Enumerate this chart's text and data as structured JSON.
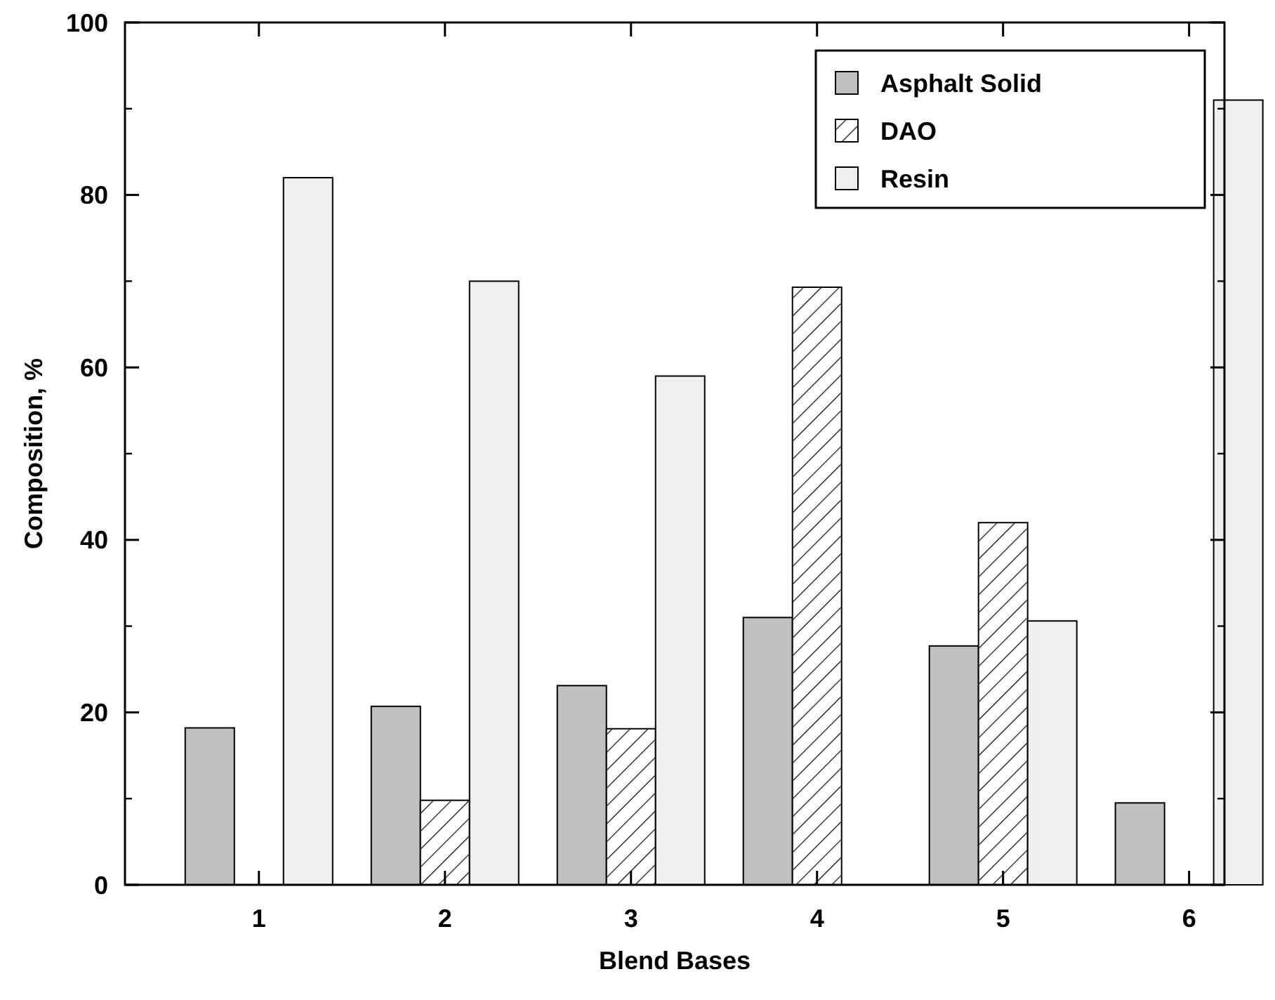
{
  "chart_data": {
    "type": "bar",
    "xlabel": "Blend Bases",
    "ylabel": "Composition, %",
    "categories": [
      "1",
      "2",
      "3",
      "4",
      "5",
      "6"
    ],
    "series": [
      {
        "name": "Asphalt Solid",
        "color": "#c0c0c0",
        "values": [
          18.2,
          20.7,
          23.1,
          31,
          27.7,
          9.5
        ]
      },
      {
        "name": "DAO",
        "color": "#ffffff",
        "values": [
          null,
          9.8,
          18.1,
          69.3,
          42,
          null
        ]
      },
      {
        "name": "Resin",
        "color": "#efefef",
        "values": [
          82,
          70,
          59,
          null,
          30.6,
          91
        ]
      }
    ],
    "ylim": [
      0,
      100
    ],
    "yticks": [
      0,
      20,
      40,
      60,
      80,
      100
    ],
    "grid": false,
    "legend": "top right"
  }
}
